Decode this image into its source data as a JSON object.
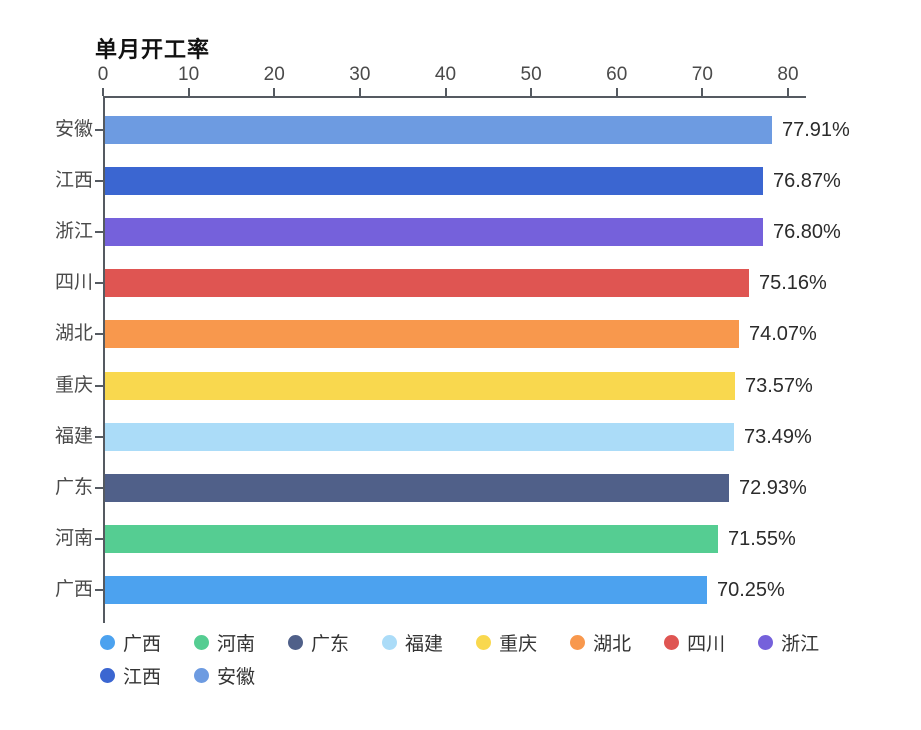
{
  "title": "单月开工率",
  "chart_data": {
    "type": "bar",
    "orientation": "horizontal",
    "title": "单月开工率",
    "categories": [
      "安徽",
      "江西",
      "浙江",
      "四川",
      "湖北",
      "重庆",
      "福建",
      "广东",
      "河南",
      "广西"
    ],
    "values": [
      77.91,
      76.87,
      76.8,
      75.16,
      74.07,
      73.57,
      73.49,
      72.93,
      71.55,
      70.25
    ],
    "value_labels": [
      "77.91%",
      "76.87%",
      "76.80%",
      "75.16%",
      "74.07%",
      "73.57%",
      "73.49%",
      "72.93%",
      "71.55%",
      "70.25%"
    ],
    "bar_colors": [
      "#6D9BE1",
      "#3B66D1",
      "#7561DB",
      "#DF5552",
      "#F8984D",
      "#F9D84E",
      "#ABDCF8",
      "#506089",
      "#55CD92",
      "#4CA2EF"
    ],
    "xlabel": "",
    "ylabel": "",
    "xlim": [
      0,
      80
    ],
    "x_ticks": [
      "0",
      "10",
      "20",
      "30",
      "40",
      "50",
      "60",
      "70",
      "80"
    ],
    "grid": false,
    "legend_position": "bottom",
    "legend": [
      {
        "label": "广西",
        "color": "#4CA2EF"
      },
      {
        "label": "河南",
        "color": "#55CD92"
      },
      {
        "label": "广东",
        "color": "#506089"
      },
      {
        "label": "福建",
        "color": "#ABDCF8"
      },
      {
        "label": "重庆",
        "color": "#F9D84E"
      },
      {
        "label": "湖北",
        "color": "#F8984D"
      },
      {
        "label": "四川",
        "color": "#DF5552"
      },
      {
        "label": "浙江",
        "color": "#7561DB"
      },
      {
        "label": "江西",
        "color": "#3B66D1"
      },
      {
        "label": "安徽",
        "color": "#6D9BE1"
      }
    ]
  },
  "style": {
    "axis_line_color": "#555a61",
    "tick_label_color": "#4a4a4a",
    "value_label_color": "#2b2b2b",
    "background": "#ffffff"
  }
}
